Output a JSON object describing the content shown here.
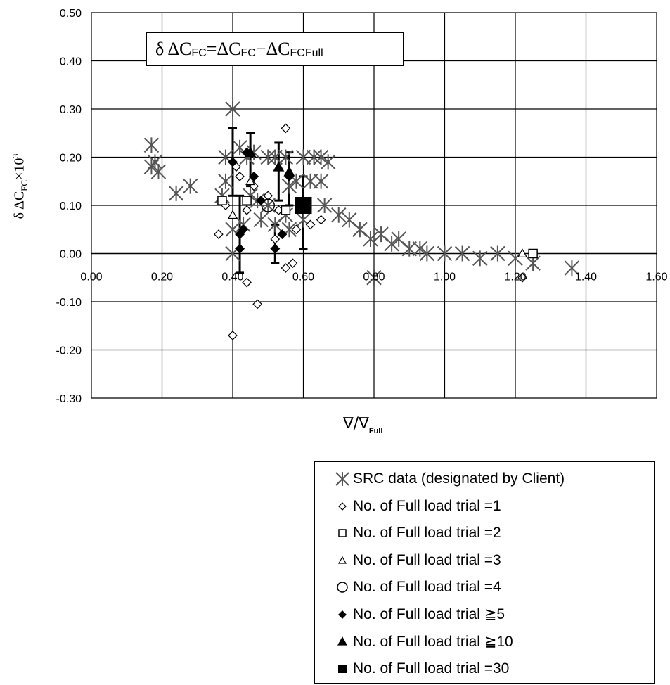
{
  "chart_data": {
    "type": "scatter",
    "title": "",
    "xlabel_symbol": "∇/∇",
    "xlabel_sub": "Full",
    "ylabel_main": "δ ΔC",
    "ylabel_sub": "FC",
    "ylabel_tail": "×10",
    "ylabel_exp": "3",
    "annotation": {
      "part1": "δ ΔC",
      "sub1": "FC",
      "part2": "=ΔC",
      "sub2": "FC",
      "part3": "−ΔC",
      "sub3": "FCFull"
    },
    "xlim": [
      0,
      1.6
    ],
    "ylim": [
      -0.3,
      0.5
    ],
    "x_ticks": [
      "0.00",
      "0.20",
      "0.40",
      "0.60",
      "0.80",
      "1.00",
      "1.20",
      "1.40",
      "1.60"
    ],
    "y_ticks": [
      "0.50",
      "0.40",
      "0.30",
      "0.20",
      "0.10",
      "0.00",
      "-0.10",
      "-0.20",
      "-0.30"
    ],
    "grid": true,
    "legend_position": "bottom-right",
    "series": [
      {
        "name": "SRC data (designated by Client)",
        "marker": "asterisk",
        "points": [
          [
            0.17,
            0.225
          ],
          [
            0.17,
            0.18
          ],
          [
            0.18,
            0.19
          ],
          [
            0.19,
            0.17
          ],
          [
            0.24,
            0.125
          ],
          [
            0.28,
            0.14
          ],
          [
            0.4,
            0.3
          ],
          [
            0.38,
            0.2
          ],
          [
            0.37,
            0.12
          ],
          [
            0.38,
            0.15
          ],
          [
            0.4,
            0.05
          ],
          [
            0.4,
            0.0
          ],
          [
            0.42,
            0.22
          ],
          [
            0.44,
            0.2
          ],
          [
            0.46,
            0.21
          ],
          [
            0.5,
            0.2
          ],
          [
            0.52,
            0.2
          ],
          [
            0.55,
            0.2
          ],
          [
            0.6,
            0.2
          ],
          [
            0.63,
            0.2
          ],
          [
            0.65,
            0.2
          ],
          [
            0.67,
            0.19
          ],
          [
            0.65,
            0.15
          ],
          [
            0.62,
            0.15
          ],
          [
            0.58,
            0.15
          ],
          [
            0.56,
            0.14
          ],
          [
            0.66,
            0.1
          ],
          [
            0.7,
            0.08
          ],
          [
            0.73,
            0.07
          ],
          [
            0.76,
            0.05
          ],
          [
            0.79,
            0.03
          ],
          [
            0.82,
            0.04
          ],
          [
            0.85,
            0.02
          ],
          [
            0.87,
            0.03
          ],
          [
            0.9,
            0.01
          ],
          [
            0.93,
            0.01
          ],
          [
            0.95,
            0.0
          ],
          [
            1.0,
            0.0
          ],
          [
            1.05,
            0.0
          ],
          [
            1.1,
            -0.01
          ],
          [
            1.15,
            0.0
          ],
          [
            1.2,
            -0.01
          ],
          [
            1.25,
            -0.02
          ],
          [
            1.36,
            -0.03
          ],
          [
            0.8,
            -0.05
          ],
          [
            0.5,
            0.1
          ],
          [
            0.45,
            0.12
          ],
          [
            0.47,
            0.11
          ],
          [
            0.55,
            0.08
          ],
          [
            0.6,
            0.07
          ],
          [
            0.43,
            0.06
          ],
          [
            0.48,
            0.07
          ],
          [
            0.52,
            0.06
          ],
          [
            0.56,
            0.05
          ]
        ]
      },
      {
        "name": "No. of Full load trial =1",
        "marker": "diamond-open",
        "points": [
          [
            0.36,
            0.04
          ],
          [
            0.4,
            -0.17
          ],
          [
            0.44,
            -0.06
          ],
          [
            0.47,
            -0.105
          ],
          [
            0.55,
            0.26
          ],
          [
            0.55,
            -0.03
          ],
          [
            0.57,
            -0.02
          ],
          [
            0.42,
            0.16
          ],
          [
            0.44,
            0.09
          ],
          [
            0.46,
            0.14
          ],
          [
            0.5,
            0.12
          ],
          [
            0.53,
            0.09
          ],
          [
            0.58,
            0.05
          ],
          [
            0.62,
            0.06
          ],
          [
            0.65,
            0.07
          ],
          [
            1.22,
            -0.05
          ],
          [
            0.38,
            0.1
          ],
          [
            0.41,
            0.18
          ],
          [
            0.52,
            0.03
          ]
        ]
      },
      {
        "name": "No. of Full load trial =2",
        "marker": "square-open",
        "points": [
          [
            0.37,
            0.11
          ],
          [
            0.44,
            0.11
          ],
          [
            0.55,
            0.09
          ],
          [
            1.25,
            0.0
          ]
        ]
      },
      {
        "name": "No. of Full load trial =3",
        "marker": "triangle-open",
        "points": [
          [
            0.4,
            0.08
          ],
          [
            0.45,
            0.15
          ],
          [
            0.6,
            0.11
          ],
          [
            1.22,
            0.0
          ]
        ]
      },
      {
        "name": "No. of Full load trial =4",
        "marker": "circle-open",
        "points": [
          [
            0.5,
            0.1
          ]
        ]
      },
      {
        "name": "No. of Full load trial ≧5",
        "marker": "diamond-filled",
        "points": [
          [
            0.4,
            0.19
          ],
          [
            0.42,
            0.01
          ],
          [
            0.42,
            0.04
          ],
          [
            0.44,
            0.21
          ],
          [
            0.46,
            0.16
          ],
          [
            0.48,
            0.11
          ],
          [
            0.52,
            0.01
          ],
          [
            0.54,
            0.04
          ],
          [
            0.56,
            0.16
          ],
          [
            0.43,
            0.05
          ]
        ]
      },
      {
        "name": "No. of Full load trial ≧10",
        "marker": "triangle-filled",
        "points": [
          [
            0.45,
            0.21
          ],
          [
            0.53,
            0.18
          ],
          [
            0.56,
            0.17
          ]
        ]
      },
      {
        "name": "No. of Full load trial  =30",
        "marker": "square-filled",
        "points": [
          [
            0.6,
            0.1
          ]
        ]
      }
    ],
    "error_bars": [
      {
        "x": 0.4,
        "y": 0.19,
        "low": 0.12,
        "high": 0.26
      },
      {
        "x": 0.42,
        "y": 0.04,
        "low": -0.04,
        "high": 0.12
      },
      {
        "x": 0.45,
        "y": 0.21,
        "low": 0.14,
        "high": 0.25
      },
      {
        "x": 0.53,
        "y": 0.18,
        "low": 0.11,
        "high": 0.23
      },
      {
        "x": 0.52,
        "y": 0.01,
        "low": -0.02,
        "high": 0.06
      },
      {
        "x": 0.56,
        "y": 0.17,
        "low": 0.1,
        "high": 0.21
      },
      {
        "x": 0.6,
        "y": 0.1,
        "low": 0.01,
        "high": 0.16
      }
    ]
  }
}
